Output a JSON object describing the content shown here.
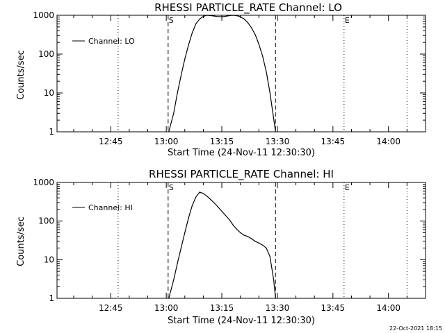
{
  "footer_timestamp": "22-Oct-2021 18:15",
  "chart_data": [
    {
      "type": "line",
      "title": "RHESSI PARTICLE_RATE Channel: LO",
      "xlabel": "Start Time (24-Nov-11 12:30:30)",
      "ylabel": "Counts/sec",
      "yscale": "log",
      "ylim": [
        1,
        1000
      ],
      "xlim": [
        "12:30:30",
        "14:10:00"
      ],
      "x_ticks": [
        "12:45",
        "13:00",
        "13:15",
        "13:30",
        "13:45",
        "14:00"
      ],
      "y_ticks": [
        "1",
        "10",
        "100",
        "1000"
      ],
      "legend": {
        "entries": [
          "Channel: LO"
        ],
        "placement": "top-left"
      },
      "grid": false,
      "vertical_markers": [
        {
          "time": "12:47",
          "style": "dotted",
          "label": ""
        },
        {
          "time": "13:00:30",
          "style": "dashed",
          "label": "S"
        },
        {
          "time": "13:29:30",
          "style": "dashed",
          "label": ""
        },
        {
          "time": "13:48",
          "style": "dotted",
          "label": "E"
        },
        {
          "time": "14:05",
          "style": "dotted",
          "label": ""
        }
      ],
      "series": [
        {
          "name": "Channel: LO",
          "x": [
            "13:00:40",
            "13:02:00",
            "13:03:00",
            "13:04:00",
            "13:05:00",
            "13:06:00",
            "13:07:00",
            "13:08:00",
            "13:09:00",
            "13:10:00",
            "13:11:00",
            "13:12:00",
            "13:13:00",
            "13:14:00",
            "13:15:00",
            "13:16:00",
            "13:17:00",
            "13:18:00",
            "13:19:00",
            "13:20:00",
            "13:21:00",
            "13:22:00",
            "13:23:00",
            "13:24:00",
            "13:25:00",
            "13:26:00",
            "13:27:00",
            "13:28:00",
            "13:29:30"
          ],
          "y": [
            1,
            3,
            10,
            28,
            75,
            170,
            350,
            600,
            800,
            940,
            1000,
            980,
            950,
            920,
            920,
            940,
            980,
            1000,
            980,
            920,
            800,
            650,
            480,
            320,
            180,
            90,
            35,
            10,
            1
          ]
        }
      ]
    },
    {
      "type": "line",
      "title": "RHESSI PARTICLE_RATE Channel: HI",
      "xlabel": "Start Time (24-Nov-11 12:30:30)",
      "ylabel": "Counts/sec",
      "yscale": "log",
      "ylim": [
        1,
        1000
      ],
      "xlim": [
        "12:30:30",
        "14:10:00"
      ],
      "x_ticks": [
        "12:45",
        "13:00",
        "13:15",
        "13:30",
        "13:45",
        "14:00"
      ],
      "y_ticks": [
        "1",
        "10",
        "100",
        "1000"
      ],
      "legend": {
        "entries": [
          "Channel: HI"
        ],
        "placement": "top-left"
      },
      "grid": false,
      "vertical_markers": [
        {
          "time": "12:47",
          "style": "dotted",
          "label": ""
        },
        {
          "time": "13:00:30",
          "style": "dashed",
          "label": "S"
        },
        {
          "time": "13:29:30",
          "style": "dashed",
          "label": ""
        },
        {
          "time": "13:48",
          "style": "dotted",
          "label": "E"
        },
        {
          "time": "14:05",
          "style": "dotted",
          "label": ""
        }
      ],
      "series": [
        {
          "name": "Channel: HI",
          "x": [
            "13:00:40",
            "13:02:00",
            "13:03:00",
            "13:04:00",
            "13:05:00",
            "13:06:00",
            "13:07:00",
            "13:08:00",
            "13:09:00",
            "13:10:00",
            "13:11:00",
            "13:12:00",
            "13:13:00",
            "13:14:00",
            "13:15:00",
            "13:16:00",
            "13:17:00",
            "13:18:00",
            "13:19:00",
            "13:20:00",
            "13:21:00",
            "13:22:00",
            "13:23:00",
            "13:24:00",
            "13:25:00",
            "13:26:00",
            "13:27:00",
            "13:28:00",
            "13:29:00",
            "13:29:30"
          ],
          "y": [
            1,
            3,
            8,
            20,
            50,
            120,
            250,
            420,
            560,
            520,
            440,
            360,
            290,
            230,
            180,
            140,
            110,
            80,
            62,
            50,
            43,
            40,
            35,
            30,
            27,
            24,
            20,
            12,
            3,
            1
          ]
        }
      ]
    }
  ]
}
